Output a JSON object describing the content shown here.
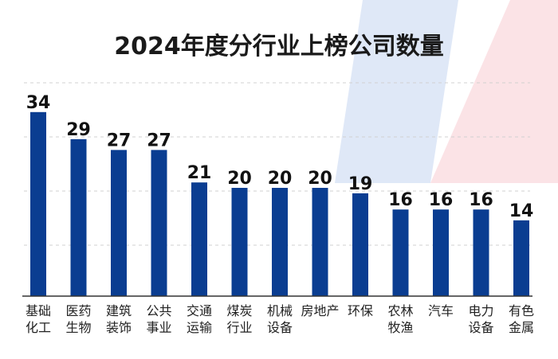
{
  "chart_data": {
    "type": "bar",
    "title": "2024年度分行业上榜公司数量",
    "xlabel": "",
    "ylabel": "",
    "ylim": [
      0,
      40
    ],
    "grid": true,
    "categories": [
      [
        "基础",
        "化工"
      ],
      [
        "医药",
        "生物"
      ],
      [
        "建筑",
        "装饰"
      ],
      [
        "公共",
        "事业"
      ],
      [
        "交通",
        "运输"
      ],
      [
        "煤炭",
        "行业"
      ],
      [
        "机械",
        "设备"
      ],
      [
        "房地产"
      ],
      [
        "环保"
      ],
      [
        "农林",
        "牧渔"
      ],
      [
        "汽车"
      ],
      [
        "电力",
        "设备"
      ],
      [
        "有色",
        "金属"
      ]
    ],
    "values": [
      34,
      29,
      27,
      27,
      21,
      20,
      20,
      20,
      19,
      16,
      16,
      16,
      14
    ]
  },
  "colors": {
    "bar": "#0a3d91",
    "grid": "#d0d0d0",
    "axis": "#333333",
    "deco_blue": "#dfe8f7",
    "deco_red": "#fbe3e6"
  }
}
